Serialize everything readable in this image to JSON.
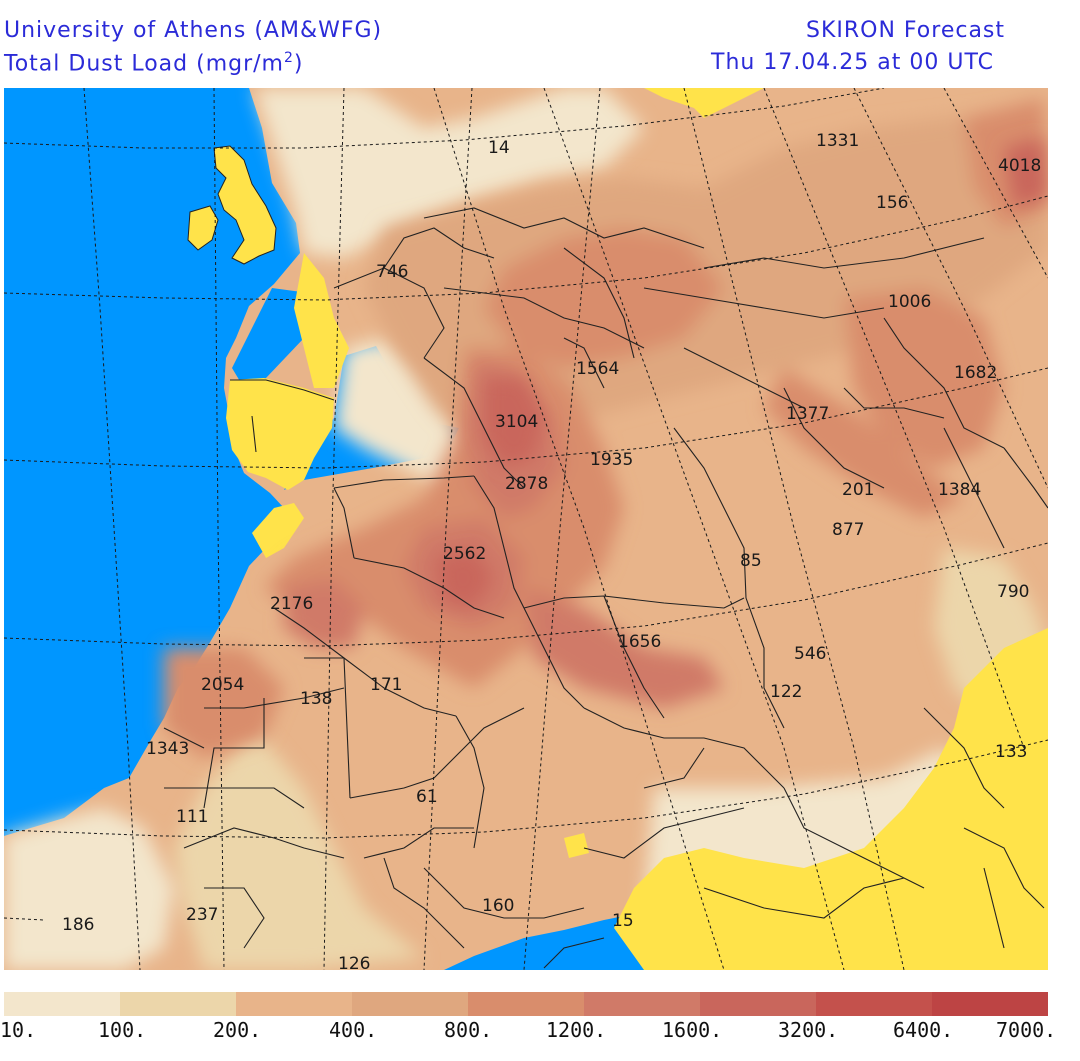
{
  "header": {
    "institution": "University of Athens (AM&WFG)",
    "product_prefix": "Total Dust Load (mgr/m",
    "product_sup": "2",
    "product_suffix": ")",
    "model": "SKIRON Forecast",
    "valid_time": "Thu 17.04.25 at 00 UTC"
  },
  "colors": {
    "sea": "#0096ff",
    "below_threshold": "#ffe34a",
    "bin_10_100": "#f3e6cc",
    "bin_100_200": "#ecd6aa",
    "bin_200_400": "#e8b48a",
    "bin_400_800": "#dfa77f",
    "bin_800_1200": "#d98d6c",
    "bin_1200_1600": "#d07a68",
    "bin_1600_3200": "#c9665c",
    "bin_3200_6400": "#c4514c",
    "bin_6400_7000": "#bd4444",
    "header_text": "#2b2bd8"
  },
  "map_values": [
    {
      "label": "14"
    },
    {
      "label": "1331"
    },
    {
      "label": "4018"
    },
    {
      "label": "156"
    },
    {
      "label": "746"
    },
    {
      "label": "1006"
    },
    {
      "label": "1564"
    },
    {
      "label": "1682"
    },
    {
      "label": "1377"
    },
    {
      "label": "3104"
    },
    {
      "label": "1935"
    },
    {
      "label": "2878"
    },
    {
      "label": "201"
    },
    {
      "label": "1384"
    },
    {
      "label": "877"
    },
    {
      "label": "2562"
    },
    {
      "label": "85"
    },
    {
      "label": "790"
    },
    {
      "label": "2176"
    },
    {
      "label": "1656"
    },
    {
      "label": "546"
    },
    {
      "label": "2054"
    },
    {
      "label": "138"
    },
    {
      "label": "171"
    },
    {
      "label": "122"
    },
    {
      "label": "1343"
    },
    {
      "label": "133"
    },
    {
      "label": "61"
    },
    {
      "label": "111"
    },
    {
      "label": "186"
    },
    {
      "label": "237"
    },
    {
      "label": "160"
    },
    {
      "label": "15"
    },
    {
      "label": "126"
    }
  ],
  "legend": {
    "ticks": [
      "10.",
      "100.",
      "200.",
      "400.",
      "800.",
      "1200.",
      "1600.",
      "3200.",
      "6400.",
      "7000."
    ]
  }
}
